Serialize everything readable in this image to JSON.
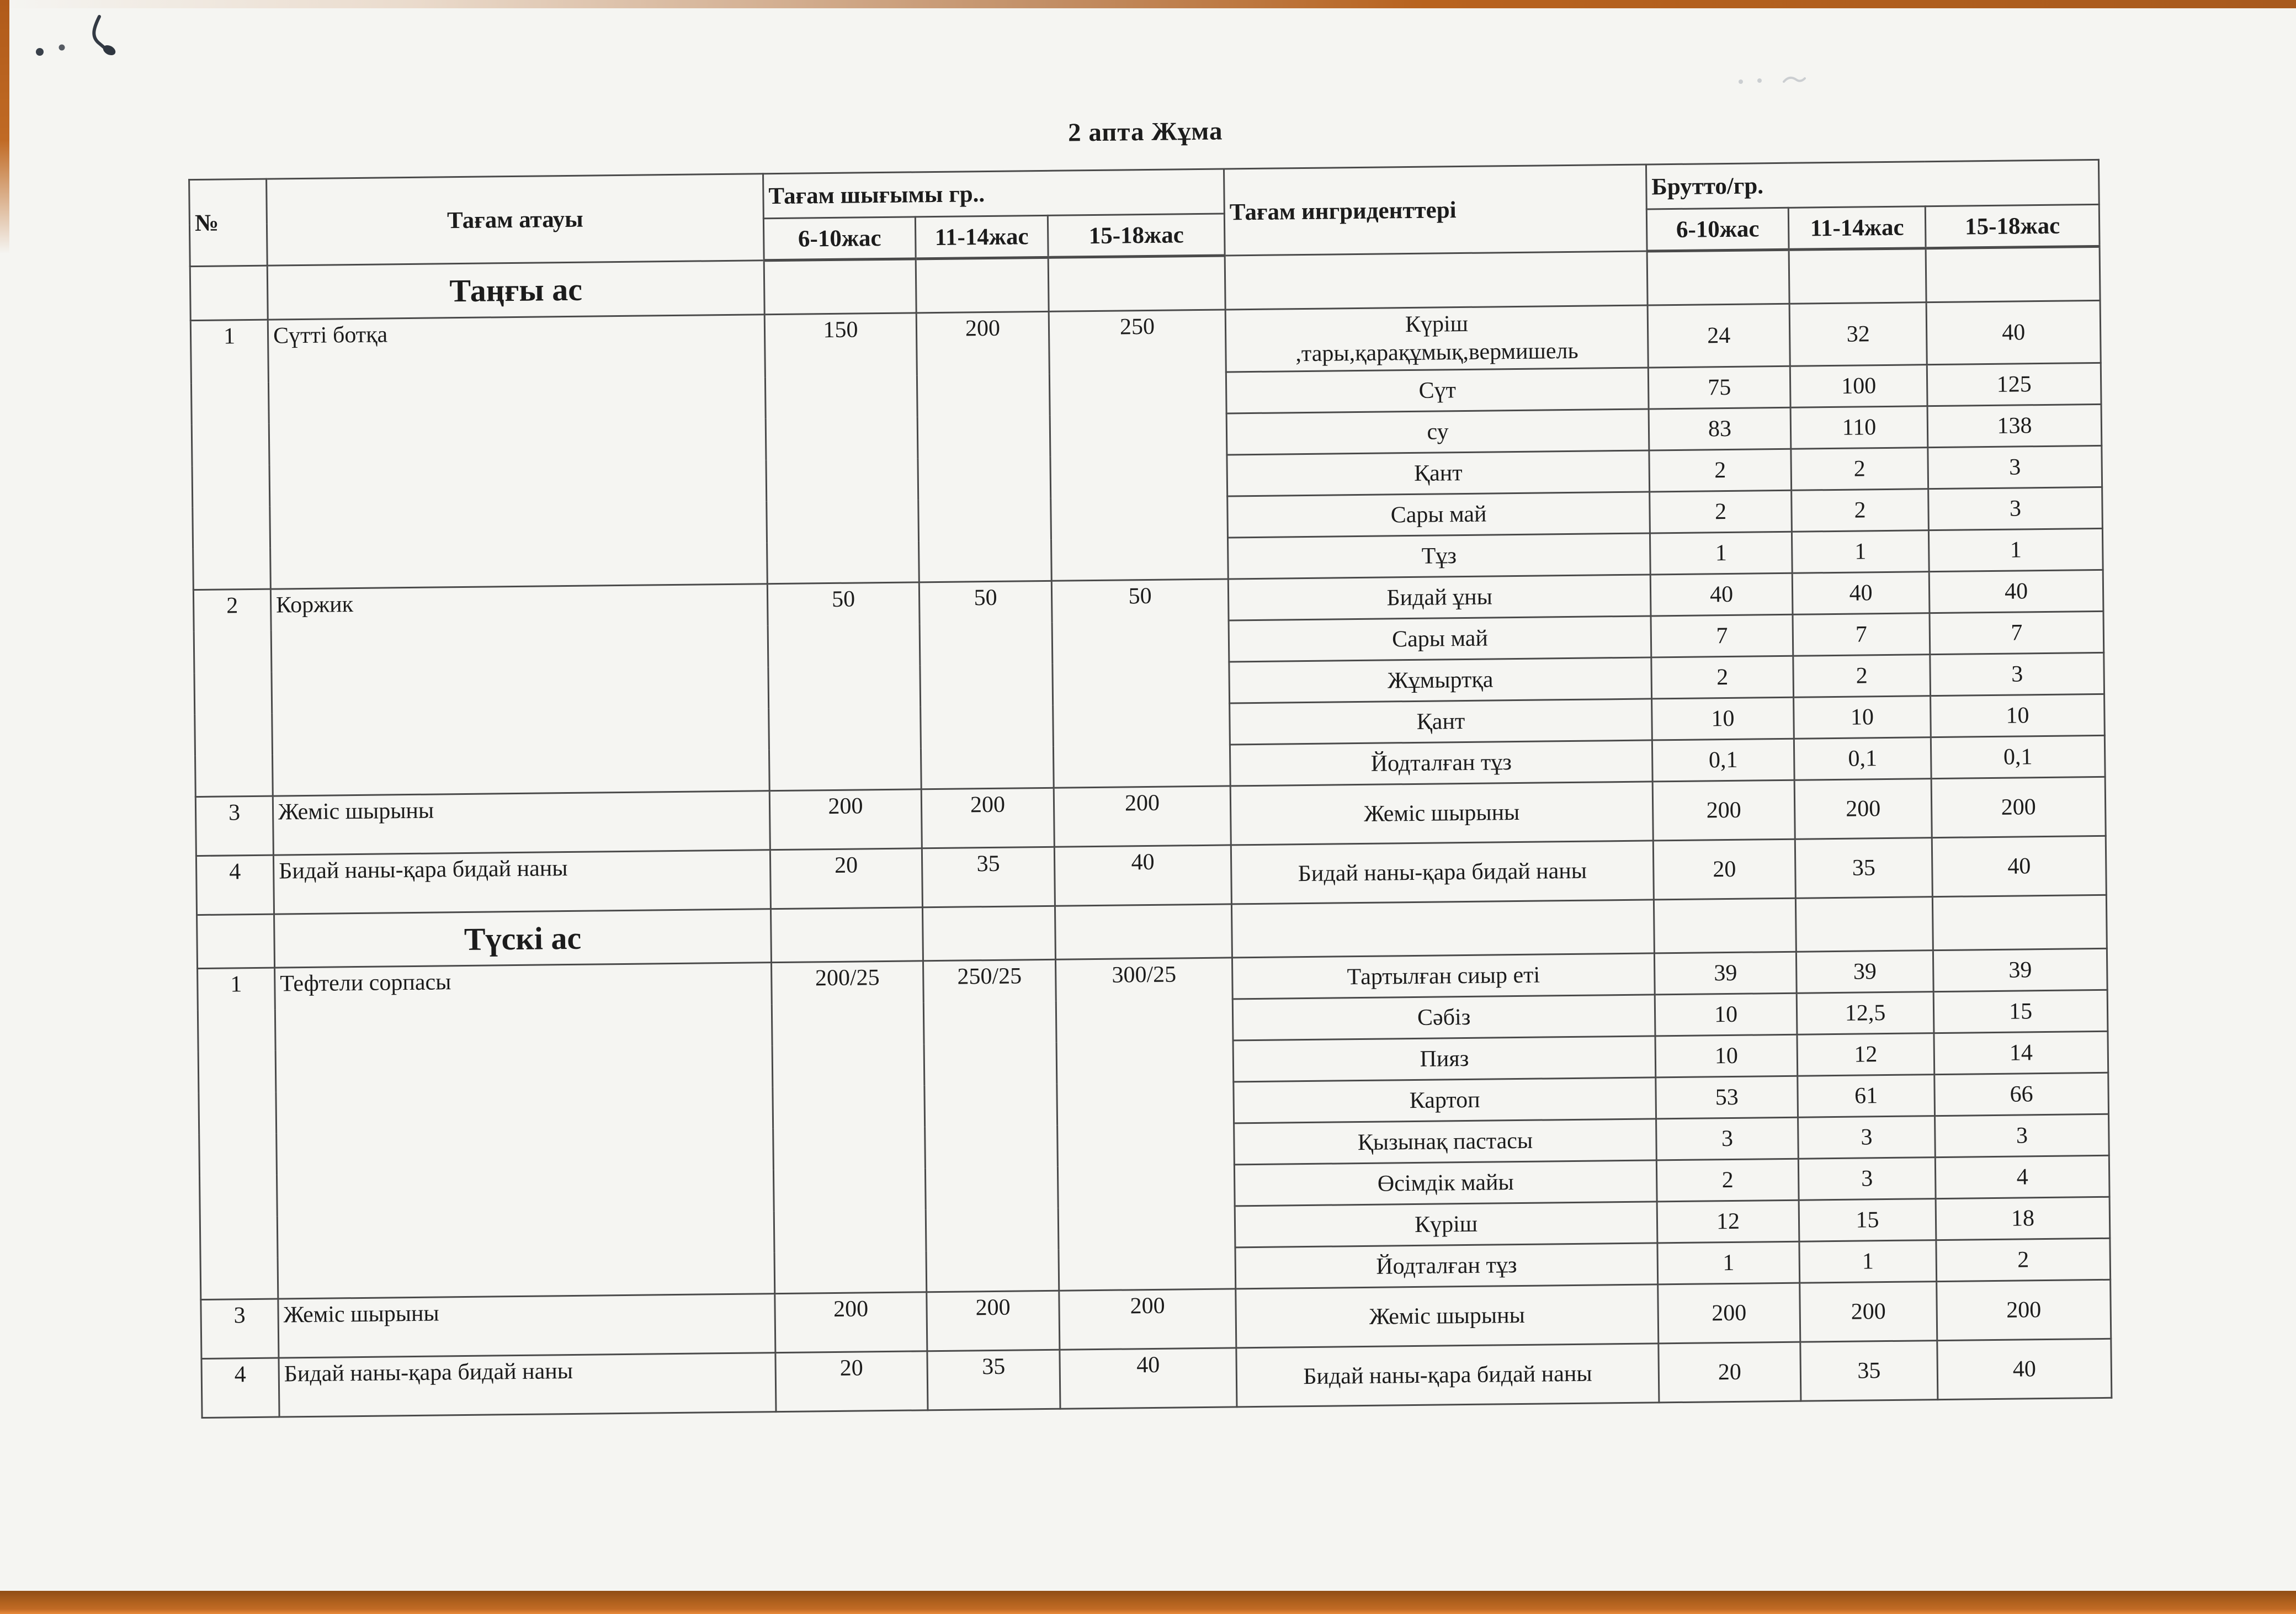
{
  "page": {
    "title": "2 апта Жұма"
  },
  "colors": {
    "paper": "#f5f5f2",
    "desk": "#b4631f",
    "desk_bright": "#e8893a",
    "ink": "#1c1c1c",
    "table_line": "#4a4a4a"
  },
  "table": {
    "headers": {
      "number": "№",
      "dish_name": "Тағам атауы",
      "dish_output": "Тағам шығымы гр..",
      "ingredients": "Тағам ингриденттері",
      "brutto": "Брутто/гр.",
      "age_groups": [
        "6-10жас",
        "11-14жас",
        "15-18жас"
      ]
    },
    "sections": [
      {
        "title": "Таңғы ас",
        "dishes": [
          {
            "number": "1",
            "name": "Сүтті  ботқа",
            "output": [
              "150",
              "200",
              "250"
            ],
            "ingredients": [
              {
                "name": "Күріш\n,тары,қарақұмық,вермишель",
                "values": [
                  "24",
                  "32",
                  "40"
                ]
              },
              {
                "name": "Сүт",
                "values": [
                  "75",
                  "100",
                  "125"
                ]
              },
              {
                "name": "су",
                "values": [
                  "83",
                  "110",
                  "138"
                ]
              },
              {
                "name": "Қант",
                "values": [
                  "2",
                  "2",
                  "3"
                ]
              },
              {
                "name": "Сары май",
                "values": [
                  "2",
                  "2",
                  "3"
                ]
              },
              {
                "name": "Тұз",
                "values": [
                  "1",
                  "1",
                  "1"
                ]
              }
            ]
          },
          {
            "number": "2",
            "name": "Коржик",
            "output": [
              "50",
              "50",
              "50"
            ],
            "ingredients": [
              {
                "name": "Бидай ұны",
                "values": [
                  "40",
                  "40",
                  "40"
                ]
              },
              {
                "name": "Сары май",
                "values": [
                  "7",
                  "7",
                  "7"
                ]
              },
              {
                "name": "Жұмыртқа",
                "values": [
                  "2",
                  "2",
                  "3"
                ]
              },
              {
                "name": "Қант",
                "values": [
                  "10",
                  "10",
                  "10"
                ]
              },
              {
                "name": "Йодталған тұз",
                "values": [
                  "0,1",
                  "0,1",
                  "0,1"
                ]
              }
            ]
          },
          {
            "number": "3",
            "name": "Жеміс шырыны",
            "output": [
              "200",
              "200",
              "200"
            ],
            "ingredients": [
              {
                "name": "Жеміс шырыны",
                "values": [
                  "200",
                  "200",
                  "200"
                ]
              }
            ]
          },
          {
            "number": "4",
            "name": "Бидай наны-қара бидай наны",
            "output": [
              "20",
              "35",
              "40"
            ],
            "ingredients": [
              {
                "name": "Бидай наны-қара бидай наны",
                "values": [
                  "20",
                  "35",
                  "40"
                ]
              }
            ]
          }
        ]
      },
      {
        "title": "Түскі ас",
        "dishes": [
          {
            "number": "1",
            "name": "Тефтели сорпасы",
            "output": [
              "200/25",
              "250/25",
              "300/25"
            ],
            "ingredients": [
              {
                "name": "Тартылған сиыр еті",
                "values": [
                  "39",
                  "39",
                  "39"
                ]
              },
              {
                "name": "Сәбіз",
                "values": [
                  "10",
                  "12,5",
                  "15"
                ]
              },
              {
                "name": "Пияз",
                "values": [
                  "10",
                  "12",
                  "14"
                ]
              },
              {
                "name": "Картоп",
                "values": [
                  "53",
                  "61",
                  "66"
                ]
              },
              {
                "name": "Қызынақ пастасы",
                "values": [
                  "3",
                  "3",
                  "3"
                ]
              },
              {
                "name": "Өсімдік майы",
                "values": [
                  "2",
                  "3",
                  "4"
                ]
              },
              {
                "name": "Күріш",
                "values": [
                  "12",
                  "15",
                  "18"
                ]
              },
              {
                "name": "Йодталған тұз",
                "values": [
                  "1",
                  "1",
                  "2"
                ]
              }
            ]
          },
          {
            "number": "3",
            "name": "Жеміс шырыны",
            "output": [
              "200",
              "200",
              "200"
            ],
            "ingredients": [
              {
                "name": "Жеміс шырыны",
                "values": [
                  "200",
                  "200",
                  "200"
                ]
              }
            ]
          },
          {
            "number": "4",
            "name": "Бидай наны-қара бидай наны",
            "output": [
              "20",
              "35",
              "40"
            ],
            "ingredients": [
              {
                "name": "Бидай наны-қара бидай наны",
                "values": [
                  "20",
                  "35",
                  "40"
                ]
              }
            ]
          }
        ]
      }
    ]
  }
}
